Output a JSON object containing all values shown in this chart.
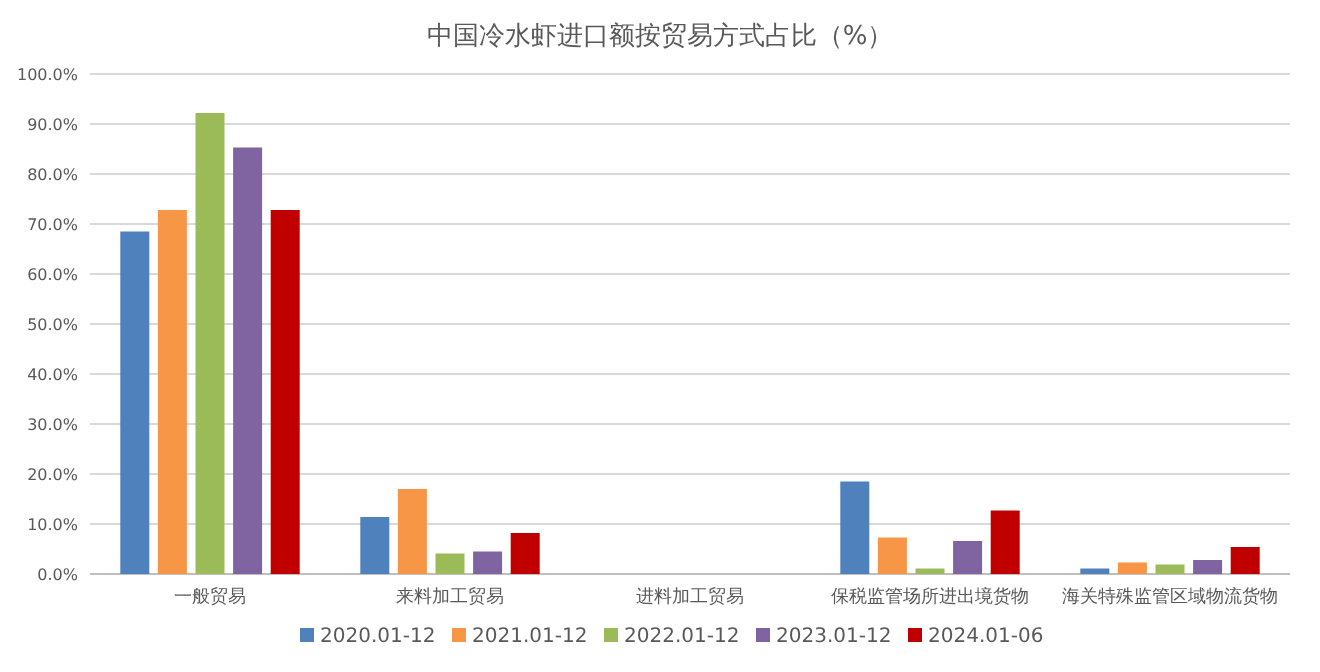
{
  "chart_data": {
    "type": "bar",
    "title": "中国冷水虾进口额按贸易方式占比（%）",
    "categories": [
      "一般贸易",
      "来料加工贸易",
      "进料加工贸易",
      "保税监管场所进出境货物",
      "海关特殊监管区域物流货物"
    ],
    "series": [
      {
        "name": "2020.01-12",
        "color": "#4f81bd",
        "values": [
          68.5,
          11.4,
          0,
          18.5,
          1.1
        ]
      },
      {
        "name": "2021.01-12",
        "color": "#f79646",
        "values": [
          72.8,
          17.0,
          0,
          7.3,
          2.3
        ]
      },
      {
        "name": "2022.01-12",
        "color": "#9bbb59",
        "values": [
          92.2,
          4.1,
          0,
          1.1,
          1.9
        ]
      },
      {
        "name": "2023.01-12",
        "color": "#8064a2",
        "values": [
          85.3,
          4.5,
          0,
          6.6,
          2.8
        ]
      },
      {
        "name": "2024.01-06",
        "color": "#c00000",
        "values": [
          72.8,
          8.2,
          0,
          12.7,
          5.4
        ]
      }
    ],
    "ylim": [
      0,
      100
    ],
    "yticks": [
      {
        "value": 0,
        "label": "0.0%"
      },
      {
        "value": 10,
        "label": "10.0%"
      },
      {
        "value": 20,
        "label": "20.0%"
      },
      {
        "value": 30,
        "label": "30.0%"
      },
      {
        "value": 40,
        "label": "40.0%"
      },
      {
        "value": 50,
        "label": "50.0%"
      },
      {
        "value": 60,
        "label": "60.0%"
      },
      {
        "value": 70,
        "label": "70.0%"
      },
      {
        "value": 80,
        "label": "80.0%"
      },
      {
        "value": 90,
        "label": "90.0%"
      },
      {
        "value": 100,
        "label": "100.0%"
      }
    ],
    "grid": "y",
    "legend": "bottom"
  }
}
